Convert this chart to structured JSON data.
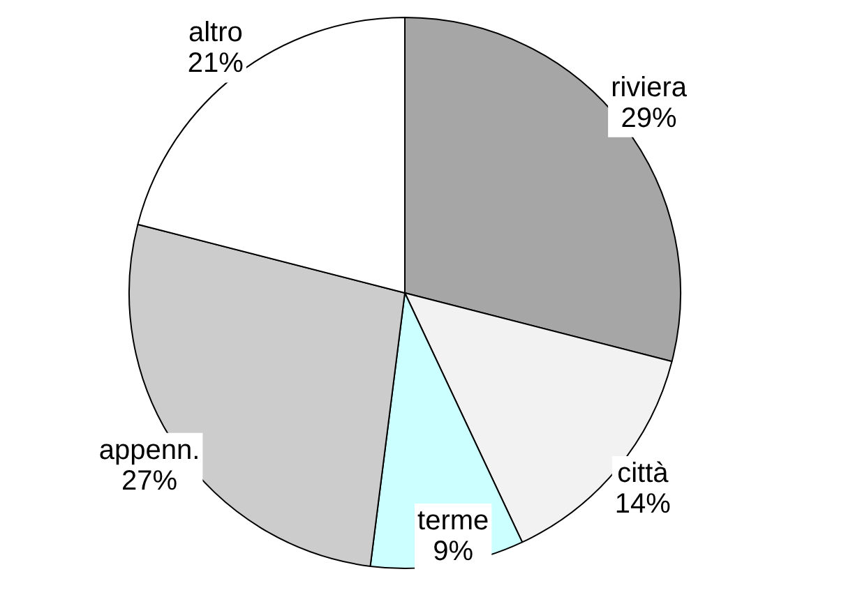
{
  "chart_data": {
    "type": "pie",
    "categories": [
      "riviera",
      "città",
      "terme",
      "appenn.",
      "altro"
    ],
    "values": [
      29,
      14,
      9,
      27,
      21
    ],
    "colors": [
      "#a6a6a6",
      "#f2f2f2",
      "#ccffff",
      "#cccccc",
      "#ffffff"
    ],
    "value_labels": [
      "29%",
      "14%",
      "9%",
      "27%",
      "21%"
    ],
    "legend": false
  }
}
